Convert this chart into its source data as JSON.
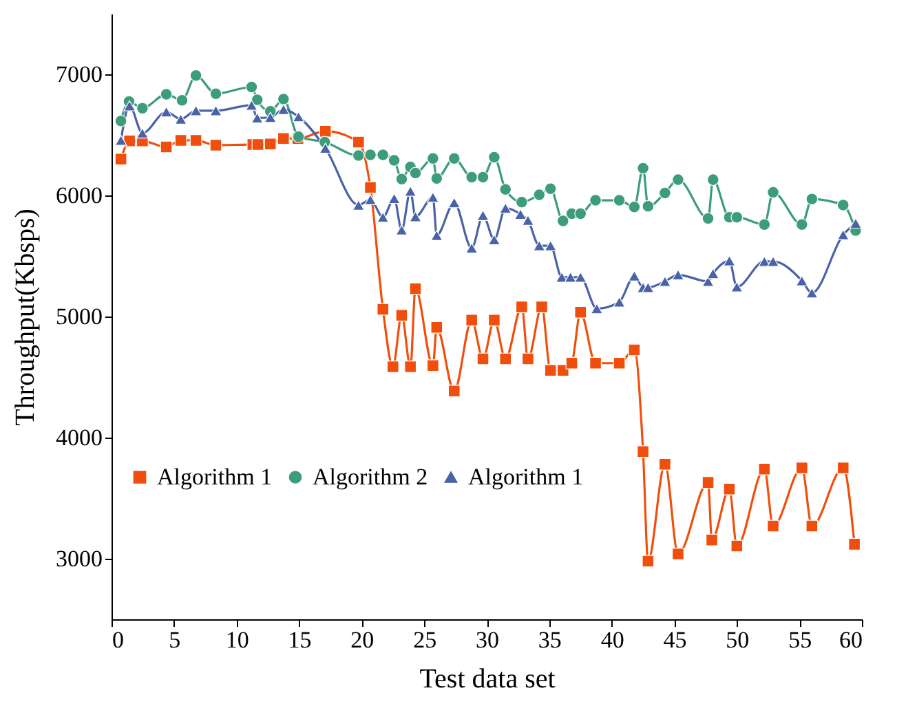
{
  "chart_data": {
    "type": "line",
    "xlabel": "Test data set",
    "ylabel": "Throughput(Kbsps)",
    "xlim": [
      0,
      60
    ],
    "xticks": [
      0,
      5,
      10,
      15,
      20,
      25,
      30,
      35,
      40,
      45,
      50,
      55,
      60
    ],
    "ylim": [
      2500,
      7500
    ],
    "yticks": [
      3000,
      4000,
      5000,
      6000,
      7000
    ],
    "grid": false,
    "legend": "bottom left",
    "line_style": "solid",
    "series": [
      {
        "name": "Algorithm 1",
        "color": "#f04e0c",
        "marker": "square",
        "x": [
          0.75,
          1.44,
          2.47,
          4.38,
          5.54,
          6.75,
          8.34,
          11.3,
          11.7,
          12.7,
          13.75,
          14.9,
          17.1,
          19.75,
          20.7,
          21.7,
          22.5,
          23.2,
          23.9,
          24.3,
          25.7,
          26.0,
          27.4,
          28.8,
          29.7,
          30.6,
          31.5,
          32.8,
          33.3,
          34.4,
          35.1,
          36.1,
          36.8,
          37.5,
          38.7,
          40.6,
          41.8,
          42.5,
          42.9,
          44.25,
          45.3,
          47.7,
          48.0,
          49.4,
          50.0,
          52.2,
          52.9,
          55.2,
          56.0,
          58.5,
          59.4
        ],
        "values": [
          6300,
          6450,
          6450,
          6400,
          6455,
          6455,
          6415,
          6420,
          6420,
          6425,
          6470,
          6470,
          6530,
          6440,
          6065,
          5060,
          4585,
          5010,
          4585,
          5230,
          4595,
          4910,
          4385,
          4970,
          4650,
          4970,
          4650,
          5080,
          4650,
          5080,
          4555,
          4555,
          4615,
          5035,
          4615,
          4615,
          4725,
          3885,
          2980,
          3780,
          3040,
          3630,
          3155,
          3575,
          3105,
          3740,
          3270,
          3750,
          3270,
          3750,
          3120
        ]
      },
      {
        "name": "Algorithm 2",
        "color": "#3d9c7c",
        "marker": "circle",
        "x": [
          0.75,
          1.4,
          2.47,
          4.38,
          5.64,
          6.75,
          8.34,
          11.2,
          11.65,
          12.7,
          13.75,
          14.95,
          17.05,
          19.75,
          20.7,
          21.7,
          22.6,
          23.2,
          23.9,
          24.3,
          25.7,
          26.0,
          27.4,
          28.8,
          29.7,
          30.6,
          31.5,
          32.8,
          34.2,
          35.1,
          36.1,
          36.8,
          37.5,
          38.7,
          40.6,
          41.8,
          42.5,
          42.9,
          44.25,
          45.3,
          47.7,
          48.1,
          49.4,
          50.0,
          52.2,
          52.9,
          55.2,
          56.0,
          58.5,
          59.5
        ],
        "values": [
          6615,
          6775,
          6720,
          6835,
          6785,
          6990,
          6840,
          6895,
          6790,
          6695,
          6795,
          6485,
          6440,
          6330,
          6335,
          6335,
          6290,
          6135,
          6235,
          6185,
          6305,
          6140,
          6305,
          6150,
          6150,
          6315,
          6050,
          5945,
          6005,
          6055,
          5790,
          5850,
          5850,
          5960,
          5960,
          5905,
          6225,
          5910,
          6020,
          6130,
          5810,
          6130,
          5820,
          5820,
          5760,
          6025,
          5760,
          5970,
          5920,
          5710
        ]
      },
      {
        "name": "Algorithm 1",
        "color": "#4a62a8",
        "marker": "triangle",
        "x": [
          0.75,
          1.44,
          2.47,
          4.38,
          5.54,
          6.75,
          8.34,
          11.2,
          11.65,
          12.7,
          13.75,
          14.95,
          17.1,
          19.75,
          20.7,
          21.7,
          22.6,
          23.2,
          23.9,
          24.3,
          25.7,
          26.0,
          27.4,
          28.8,
          29.7,
          30.6,
          31.5,
          32.7,
          33.3,
          34.2,
          35.1,
          36.0,
          36.7,
          37.5,
          38.8,
          40.6,
          41.8,
          42.5,
          42.9,
          44.25,
          45.3,
          47.7,
          48.1,
          49.4,
          50.0,
          52.2,
          52.9,
          55.2,
          56.0,
          58.5,
          59.5
        ],
        "values": [
          6455,
          6740,
          6515,
          6690,
          6630,
          6700,
          6700,
          6745,
          6640,
          6645,
          6710,
          6650,
          6390,
          5920,
          5965,
          5820,
          5975,
          5715,
          6035,
          5825,
          5985,
          5670,
          5940,
          5565,
          5835,
          5635,
          5895,
          5845,
          5795,
          5585,
          5585,
          5325,
          5325,
          5325,
          5065,
          5120,
          5335,
          5240,
          5240,
          5290,
          5345,
          5290,
          5355,
          5460,
          5245,
          5455,
          5455,
          5295,
          5195,
          5675,
          5770
        ]
      }
    ]
  }
}
